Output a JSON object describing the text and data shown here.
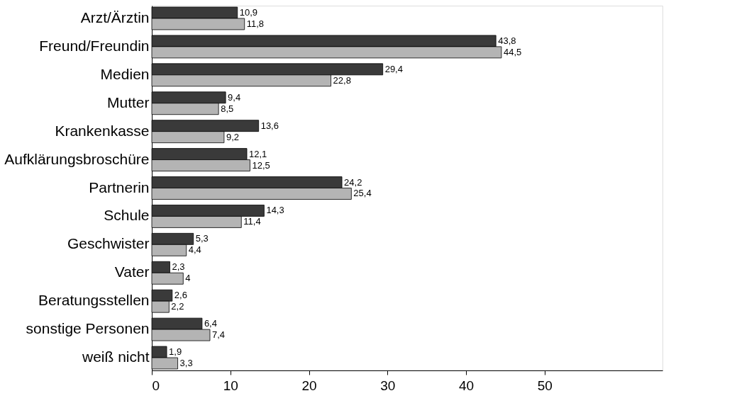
{
  "chart_data": {
    "type": "bar",
    "orientation": "horizontal",
    "categories": [
      "Arzt/Ärztin",
      "Freund/Freundin",
      "Medien",
      "Mutter",
      "Krankenkasse",
      "Aufklärungsbroschüre",
      "Partnerin",
      "Schule",
      "Geschwister",
      "Vater",
      "Beratungsstellen",
      "sonstige Personen",
      "weiß nicht"
    ],
    "series": [
      {
        "color": "#3a3a3a",
        "values": [
          10.9,
          43.8,
          29.4,
          9.4,
          13.6,
          12.1,
          24.2,
          14.3,
          5.3,
          2.3,
          2.6,
          6.4,
          1.9
        ],
        "value_labels": [
          "10,9",
          "43,8",
          "29,4",
          "9,4",
          "13,6",
          "12,1",
          "24,2",
          "14,3",
          "5,3",
          "2,3",
          "2,6",
          "6,4",
          "1,9"
        ]
      },
      {
        "color": "#b4b4b4",
        "values": [
          11.8,
          44.5,
          22.8,
          8.5,
          9.2,
          12.5,
          25.4,
          11.4,
          4.4,
          4,
          2.2,
          7.4,
          3.3
        ],
        "value_labels": [
          "11,8",
          "44,5",
          "22,8",
          "8,5",
          "9,2",
          "12,5",
          "25,4",
          "11,4",
          "4,4",
          "4",
          "2,2",
          "7,4",
          "3,3"
        ]
      }
    ],
    "xlim": [
      0,
      65
    ],
    "xticks": [
      0,
      10,
      20,
      30,
      40,
      50
    ],
    "grid": false,
    "legend": false
  }
}
